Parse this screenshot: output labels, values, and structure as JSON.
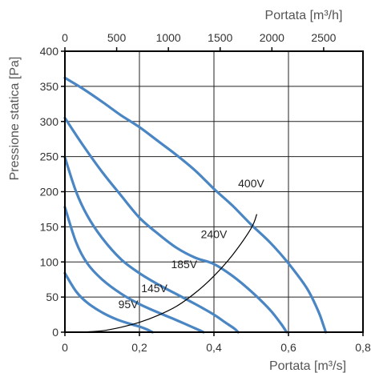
{
  "chart_data": {
    "type": "line",
    "x_bottom": {
      "label": "Portata [m³/s]",
      "range": [
        0,
        0.8
      ],
      "ticks": [
        0,
        0.2,
        0.4,
        0.6,
        0.8
      ],
      "tick_labels": [
        "0",
        "0,2",
        "0,4",
        "0,6",
        "0,8"
      ]
    },
    "x_top": {
      "label": "Portata [m³/h]",
      "ticks": [
        0,
        500,
        1000,
        1500,
        2000,
        2500
      ],
      "tick_labels": [
        "0",
        "500",
        "1000",
        "1500",
        "2000",
        "2500"
      ]
    },
    "y": {
      "label": "Pressione statica [Pa]",
      "range": [
        0,
        400
      ],
      "ticks": [
        0,
        50,
        100,
        150,
        200,
        250,
        300,
        350,
        400
      ],
      "tick_labels": [
        "0",
        "50",
        "100",
        "150",
        "200",
        "250",
        "300",
        "350",
        "400"
      ]
    },
    "grid": true,
    "series": [
      {
        "name": "95V",
        "color": "#4a86c4",
        "points": [
          [
            0,
            84
          ],
          [
            0.03,
            58
          ],
          [
            0.06,
            42
          ],
          [
            0.1,
            28
          ],
          [
            0.14,
            18
          ],
          [
            0.18,
            11
          ],
          [
            0.2,
            8
          ],
          [
            0.22,
            4
          ],
          [
            0.235,
            0
          ]
        ]
      },
      {
        "name": "145V",
        "color": "#4a86c4",
        "points": [
          [
            0,
            178
          ],
          [
            0.03,
            128
          ],
          [
            0.06,
            98
          ],
          [
            0.1,
            75
          ],
          [
            0.15,
            55
          ],
          [
            0.2,
            40
          ],
          [
            0.25,
            28
          ],
          [
            0.3,
            17
          ],
          [
            0.33,
            10
          ],
          [
            0.36,
            3
          ],
          [
            0.372,
            0
          ]
        ]
      },
      {
        "name": "185V",
        "color": "#4a86c4",
        "points": [
          [
            0,
            249
          ],
          [
            0.03,
            200
          ],
          [
            0.06,
            166
          ],
          [
            0.1,
            134
          ],
          [
            0.15,
            104
          ],
          [
            0.2,
            84
          ],
          [
            0.25,
            68
          ],
          [
            0.3,
            54
          ],
          [
            0.35,
            40
          ],
          [
            0.4,
            25
          ],
          [
            0.43,
            14
          ],
          [
            0.455,
            5
          ],
          [
            0.465,
            0
          ]
        ]
      },
      {
        "name": "240V",
        "color": "#4a86c4",
        "points": [
          [
            0,
            305
          ],
          [
            0.05,
            265
          ],
          [
            0.1,
            228
          ],
          [
            0.15,
            195
          ],
          [
            0.2,
            163
          ],
          [
            0.25,
            140
          ],
          [
            0.3,
            120
          ],
          [
            0.35,
            106
          ],
          [
            0.4,
            97
          ],
          [
            0.45,
            80
          ],
          [
            0.5,
            58
          ],
          [
            0.55,
            32
          ],
          [
            0.58,
            12
          ],
          [
            0.595,
            0
          ]
        ]
      },
      {
        "name": "400V",
        "color": "#4a86c4",
        "points": [
          [
            0,
            362
          ],
          [
            0.05,
            346
          ],
          [
            0.1,
            328
          ],
          [
            0.15,
            309
          ],
          [
            0.2,
            292
          ],
          [
            0.25,
            272
          ],
          [
            0.3,
            252
          ],
          [
            0.35,
            230
          ],
          [
            0.4,
            204
          ],
          [
            0.45,
            180
          ],
          [
            0.5,
            153
          ],
          [
            0.55,
            128
          ],
          [
            0.6,
            98
          ],
          [
            0.65,
            62
          ],
          [
            0.68,
            30
          ],
          [
            0.695,
            8
          ],
          [
            0.7,
            0
          ]
        ]
      }
    ],
    "system_curve": {
      "color": "#000000",
      "points": [
        [
          0.04,
          0
        ],
        [
          0.1,
          2
        ],
        [
          0.15,
          7
        ],
        [
          0.2,
          14
        ],
        [
          0.25,
          24
        ],
        [
          0.3,
          37
        ],
        [
          0.35,
          56
        ],
        [
          0.4,
          80
        ],
        [
          0.45,
          110
        ],
        [
          0.5,
          148
        ],
        [
          0.515,
          168
        ]
      ]
    },
    "curve_labels": [
      {
        "text": "95V",
        "x": 0.17,
        "y": 34
      },
      {
        "text": "145V",
        "x": 0.24,
        "y": 57
      },
      {
        "text": "185V",
        "x": 0.32,
        "y": 91
      },
      {
        "text": "240V",
        "x": 0.4,
        "y": 134
      },
      {
        "text": "400V",
        "x": 0.5,
        "y": 206
      }
    ]
  }
}
